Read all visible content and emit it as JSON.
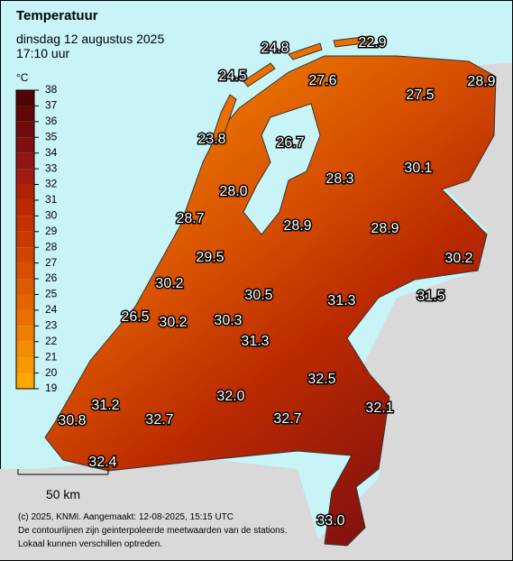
{
  "header": {
    "title": "Temperatuur",
    "subtitle": "dinsdag 12 augustus 2025",
    "time": "17:10 uur"
  },
  "legend": {
    "unit": "°C",
    "ticks": [
      38,
      37,
      36,
      35,
      34,
      33,
      32,
      31,
      30,
      29,
      28,
      27,
      26,
      25,
      24,
      23,
      22,
      21,
      20,
      19
    ],
    "colors": [
      "#500505",
      "#600808",
      "#700c0c",
      "#801010",
      "#901515",
      "#a01c10",
      "#b02200",
      "#bb2a00",
      "#c43200",
      "#c93a00",
      "#d04400",
      "#d64f00",
      "#dc5a00",
      "#e36400",
      "#e97000",
      "#ee7d00",
      "#f58c00",
      "#fa9600",
      "#ffa500"
    ]
  },
  "stations": [
    "24.8",
    "22.9",
    "24.5",
    "27.6",
    "27.5",
    "28.9",
    "23.8",
    "26.7",
    "28.3",
    "30.1",
    "28.0",
    "28.7",
    "28.9",
    "28.9",
    "30.2",
    "29.5",
    "30.2",
    "30.5",
    "31.3",
    "31.5",
    "26.5",
    "30.2",
    "30.3",
    "31.3",
    "32.5",
    "32.0",
    "32.1",
    "31.2",
    "32.7",
    "32.7",
    "30.8",
    "32.4",
    "33.0"
  ],
  "scale": "50 km",
  "footer": [
    "(c) 2025, KNMI. Aangemaakt: 12-08-2025, 15:15 UTC",
    "De contourlijnen zijn geinterpoleerde meetwaarden van de stations.",
    "Lokaal kunnen verschillen optreden."
  ]
}
